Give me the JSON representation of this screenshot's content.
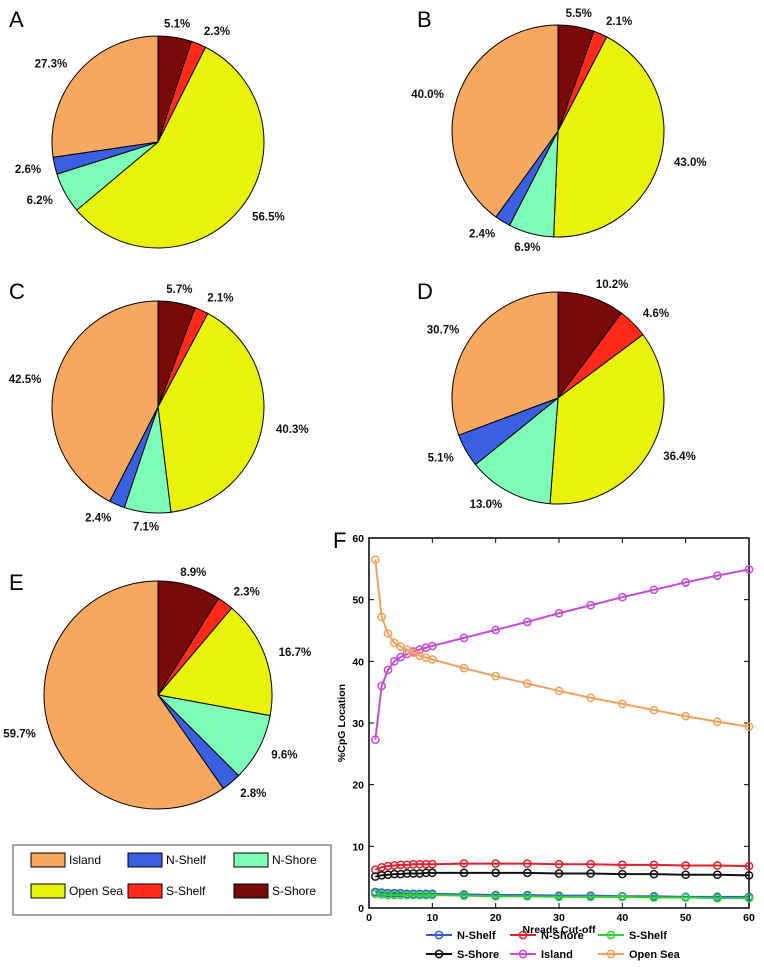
{
  "categories": [
    "Island",
    "N-Shelf",
    "N-Shore",
    "Open Sea",
    "S-Shelf",
    "S-Shore"
  ],
  "colors": {
    "Island": "#f7a860",
    "N-Shelf": "#3a5fe0",
    "N-Shore": "#7dfcb8",
    "Open Sea": "#e8f20a",
    "S-Shelf": "#ff2a1a",
    "S-Shore": "#7a0a0a"
  },
  "chart_data": [
    {
      "type": "pie",
      "panel": "A",
      "slices": [
        {
          "name": "S-Shore",
          "value": 5.1,
          "label": "5.1%"
        },
        {
          "name": "S-Shelf",
          "value": 2.3,
          "label": "2.3%"
        },
        {
          "name": "Open Sea",
          "value": 56.5,
          "label": "56.5%"
        },
        {
          "name": "N-Shore",
          "value": 6.2,
          "label": "6.2%"
        },
        {
          "name": "N-Shelf",
          "value": 2.6,
          "label": "2.6%"
        },
        {
          "name": "Island",
          "value": 27.3,
          "label": "27.3%"
        }
      ]
    },
    {
      "type": "pie",
      "panel": "B",
      "slices": [
        {
          "name": "S-Shore",
          "value": 5.5,
          "label": "5.5%"
        },
        {
          "name": "S-Shelf",
          "value": 2.1,
          "label": "2.1%"
        },
        {
          "name": "Open Sea",
          "value": 43.0,
          "label": "43.0%"
        },
        {
          "name": "N-Shore",
          "value": 6.9,
          "label": "6.9%"
        },
        {
          "name": "N-Shelf",
          "value": 2.4,
          "label": "2.4%"
        },
        {
          "name": "Island",
          "value": 40.0,
          "label": "40.0%"
        }
      ]
    },
    {
      "type": "pie",
      "panel": "C",
      "slices": [
        {
          "name": "S-Shore",
          "value": 5.7,
          "label": "5.7%"
        },
        {
          "name": "S-Shelf",
          "value": 2.1,
          "label": "2.1%"
        },
        {
          "name": "Open Sea",
          "value": 40.3,
          "label": "40.3%"
        },
        {
          "name": "N-Shore",
          "value": 7.1,
          "label": "7.1%"
        },
        {
          "name": "N-Shelf",
          "value": 2.4,
          "label": "2.4%"
        },
        {
          "name": "Island",
          "value": 42.5,
          "label": "42.5%"
        }
      ]
    },
    {
      "type": "pie",
      "panel": "D",
      "slices": [
        {
          "name": "S-Shore",
          "value": 10.2,
          "label": "10.2%"
        },
        {
          "name": "S-Shelf",
          "value": 4.6,
          "label": "4.6%"
        },
        {
          "name": "Open Sea",
          "value": 36.4,
          "label": "36.4%"
        },
        {
          "name": "N-Shore",
          "value": 13.0,
          "label": "13.0%"
        },
        {
          "name": "N-Shelf",
          "value": 5.1,
          "label": "5.1%"
        },
        {
          "name": "Island",
          "value": 30.7,
          "label": "30.7%"
        }
      ]
    },
    {
      "type": "pie",
      "panel": "E",
      "slices": [
        {
          "name": "S-Shore",
          "value": 8.9,
          "label": "8.9%"
        },
        {
          "name": "S-Shelf",
          "value": 2.3,
          "label": "2.3%"
        },
        {
          "name": "Open Sea",
          "value": 16.7,
          "label": "16.7%"
        },
        {
          "name": "N-Shore",
          "value": 9.6,
          "label": "9.6%"
        },
        {
          "name": "N-Shelf",
          "value": 2.8,
          "label": "2.8%"
        },
        {
          "name": "Island",
          "value": 59.7,
          "label": "59.7%"
        }
      ]
    },
    {
      "type": "line",
      "panel": "F",
      "xlabel": "Nreads Cut-off",
      "ylabel": "%CpG Location",
      "xlim": [
        0,
        60
      ],
      "ylim": [
        0,
        60
      ],
      "xticks": [
        0,
        10,
        20,
        30,
        40,
        50,
        60
      ],
      "yticks": [
        0,
        10,
        20,
        30,
        40,
        50,
        60
      ],
      "x": [
        1,
        2,
        3,
        4,
        5,
        6,
        7,
        8,
        9,
        10,
        15,
        20,
        25,
        30,
        35,
        40,
        45,
        50,
        55,
        60
      ],
      "series": [
        {
          "name": "N-Shelf",
          "values": [
            2.6,
            2.5,
            2.4,
            2.4,
            2.4,
            2.3,
            2.3,
            2.3,
            2.3,
            2.3,
            2.2,
            2.1,
            2.1,
            2.0,
            2.0,
            1.9,
            1.9,
            1.8,
            1.8,
            1.8
          ]
        },
        {
          "name": "N-Shore",
          "values": [
            6.2,
            6.6,
            6.8,
            6.9,
            7.0,
            7.0,
            7.1,
            7.1,
            7.1,
            7.1,
            7.2,
            7.2,
            7.2,
            7.1,
            7.1,
            7.0,
            7.0,
            6.9,
            6.9,
            6.8
          ]
        },
        {
          "name": "S-Shelf",
          "values": [
            2.3,
            2.2,
            2.1,
            2.1,
            2.1,
            2.1,
            2.1,
            2.1,
            2.1,
            2.1,
            2.0,
            1.9,
            1.9,
            1.8,
            1.8,
            1.8,
            1.7,
            1.7,
            1.6,
            1.6
          ]
        },
        {
          "name": "S-Shore",
          "values": [
            5.1,
            5.3,
            5.4,
            5.5,
            5.5,
            5.6,
            5.6,
            5.6,
            5.7,
            5.7,
            5.7,
            5.7,
            5.7,
            5.6,
            5.6,
            5.5,
            5.5,
            5.4,
            5.4,
            5.3
          ]
        },
        {
          "name": "Island",
          "values": [
            27.3,
            36.0,
            38.6,
            40.0,
            40.7,
            41.2,
            41.6,
            41.9,
            42.2,
            42.5,
            43.8,
            45.1,
            46.4,
            47.8,
            49.1,
            50.4,
            51.6,
            52.8,
            53.9,
            54.9
          ]
        },
        {
          "name": "Open Sea",
          "values": [
            56.5,
            47.2,
            44.5,
            43.0,
            42.4,
            41.9,
            41.4,
            40.9,
            40.6,
            40.3,
            38.9,
            37.6,
            36.4,
            35.2,
            34.1,
            33.1,
            32.1,
            31.1,
            30.2,
            29.4
          ]
        }
      ]
    }
  ]
}
